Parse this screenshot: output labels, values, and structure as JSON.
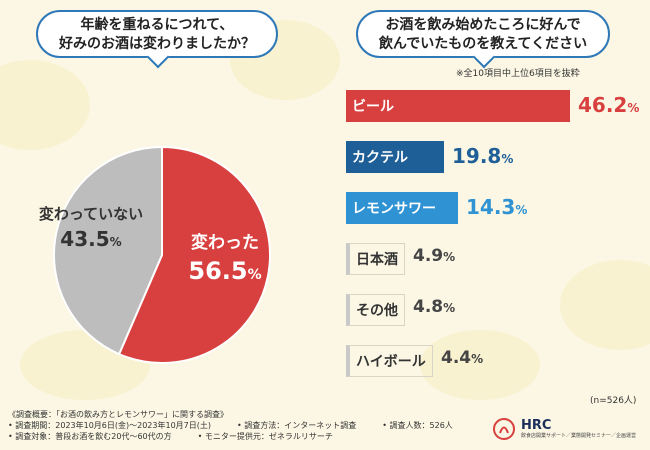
{
  "pie_question": [
    "年齢を重ねるにつれて、",
    "好みのお酒は変わりましたか？"
  ],
  "bar_question": [
    "お酒を飲み始めたころに好んで",
    "飲んでいたものを教えてください"
  ],
  "bar_note": "※全10項目中上位6項目を抜粋",
  "sample_note": "(n=526人)",
  "colors": {
    "red": "#d8403f",
    "gray": "#bdbdbd",
    "dark_blue": "#1f5f98",
    "light_blue": "#2e92d3",
    "accent": "#2e78b7"
  },
  "chart_data": [
    {
      "type": "pie",
      "title": "年齢を重ねるにつれて、好みのお酒は変わりましたか？",
      "slices": [
        {
          "label": "変わった",
          "value": 56.5,
          "unit": "%",
          "color": "#d8403f"
        },
        {
          "label": "変わっていない",
          "value": 43.5,
          "unit": "%",
          "color": "#bdbdbd"
        }
      ]
    },
    {
      "type": "bar",
      "orientation": "horizontal",
      "title": "お酒を飲み始めたころに好んで飲んでいたものを教えてください",
      "categories": [
        "ビール",
        "カクテル",
        "レモンサワー",
        "日本酒",
        "その他",
        "ハイボール"
      ],
      "values": [
        46.2,
        19.8,
        14.3,
        4.9,
        4.8,
        4.4
      ],
      "unit": "%",
      "style": [
        "red",
        "dark_blue",
        "light_blue",
        "empty",
        "empty",
        "empty"
      ],
      "xlim": [
        0,
        46.2
      ]
    }
  ],
  "footer": {
    "line1": [
      "《調査概要：「お酒の飲み方とレモンサワー」に関する調査》"
    ],
    "line2": [
      "• 調査期間：2023年10月6日(金)～2023年10月7日(土)",
      "• 調査方法：インターネット調査",
      "• 調査人数：526人"
    ],
    "line3": [
      "• 調査対象：普段お酒を飲む20代～60代の方",
      "• モニター提供元：ゼネラルリサーチ"
    ]
  },
  "logo": {
    "name": "HRC",
    "tagline": "飲食店開業サポート／業態開発セミナー／企画運営"
  }
}
